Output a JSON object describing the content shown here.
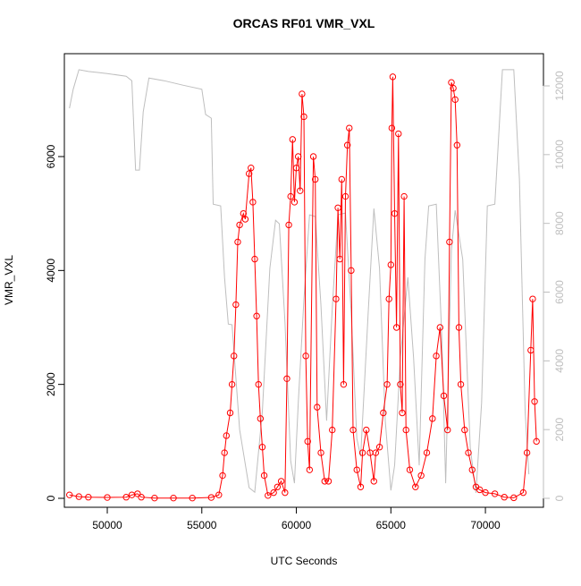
{
  "chart_data": {
    "type": "scatter",
    "title": "ORCAS RF01 VMR_VXL",
    "x_label": "UTC Seconds",
    "y_label": "VMR_VXL",
    "xlim": [
      47730,
      73070
    ],
    "xticks": [
      50000,
      55000,
      60000,
      65000,
      70000
    ],
    "ylim": [
      -157,
      7806
    ],
    "yticks": [
      0,
      2000,
      4000,
      6000
    ],
    "y2lim": [
      -260,
      12937
    ],
    "y2ticks": [
      0,
      2000,
      4000,
      6000,
      8000,
      10000,
      12000
    ],
    "series": [
      {
        "color": "#ff0000",
        "marker": "open-circle",
        "line": true,
        "x": [
          48000,
          48500,
          49000,
          50000,
          51000,
          51300,
          51600,
          51800,
          52500,
          53500,
          54500,
          55500,
          55900,
          56100,
          56200,
          56300,
          56500,
          56600,
          56700,
          56800,
          56900,
          57000,
          57200,
          57300,
          57500,
          57600,
          57700,
          57800,
          57900,
          58000,
          58100,
          58200,
          58300,
          58500,
          58800,
          59000,
          59200,
          59400,
          59500,
          59600,
          59700,
          59800,
          59900,
          60000,
          60100,
          60200,
          60300,
          60400,
          60500,
          60600,
          60700,
          60900,
          61000,
          61100,
          61300,
          61500,
          61700,
          61900,
          62100,
          62200,
          62300,
          62400,
          62500,
          62600,
          62700,
          62800,
          62900,
          63000,
          63200,
          63400,
          63500,
          63700,
          63900,
          64100,
          64200,
          64400,
          64600,
          64800,
          64900,
          65000,
          65050,
          65100,
          65200,
          65300,
          65400,
          65500,
          65600,
          65700,
          65800,
          66000,
          66300,
          66600,
          66900,
          67200,
          67400,
          67600,
          67800,
          68000,
          68100,
          68200,
          68300,
          68400,
          68500,
          68600,
          68700,
          68900,
          69100,
          69300,
          69500,
          69700,
          70000,
          70500,
          71000,
          71500,
          72000,
          72200,
          72400,
          72500,
          72600,
          72700
        ],
        "values": [
          60,
          30,
          20,
          15,
          20,
          60,
          80,
          20,
          5,
          5,
          5,
          15,
          60,
          400,
          800,
          1100,
          1500,
          2000,
          2500,
          3400,
          4500,
          4800,
          5000,
          4900,
          5700,
          5800,
          5200,
          4200,
          3200,
          2000,
          1400,
          900,
          400,
          50,
          100,
          200,
          300,
          100,
          2100,
          4800,
          5300,
          6300,
          5200,
          5800,
          6000,
          5400,
          7100,
          6700,
          2500,
          1000,
          500,
          6000,
          5600,
          1600,
          800,
          300,
          300,
          1200,
          3500,
          5100,
          4200,
          5600,
          2000,
          5300,
          6200,
          6500,
          4000,
          1200,
          500,
          200,
          800,
          1200,
          800,
          300,
          800,
          900,
          1500,
          2000,
          3500,
          4100,
          6500,
          7400,
          5000,
          3000,
          6400,
          2000,
          1500,
          5300,
          1200,
          500,
          200,
          400,
          800,
          1400,
          2500,
          3000,
          1800,
          1200,
          4500,
          7300,
          7200,
          7000,
          6200,
          3000,
          2000,
          1200,
          800,
          500,
          200,
          150,
          100,
          80,
          20,
          10,
          100,
          800,
          2600,
          3500,
          1700,
          1000
        ]
      },
      {
        "color": "#bebebe",
        "axis": "y2",
        "marker": "none",
        "line": true,
        "x": [
          48000,
          48200,
          48500,
          49000,
          49500,
          50000,
          51000,
          51300,
          51500,
          51700,
          51900,
          52200,
          53000,
          54000,
          55000,
          55200,
          55500,
          55600,
          56000,
          56200,
          56400,
          56600,
          57000,
          57500,
          57800,
          58200,
          58600,
          58900,
          59100,
          59400,
          59700,
          59900,
          60100,
          60400,
          60700,
          61000,
          61300,
          61600,
          61900,
          62200,
          62600,
          62900,
          63200,
          63400,
          63800,
          64100,
          64400,
          64700,
          65000,
          65200,
          65500,
          65900,
          66200,
          66500,
          66800,
          67000,
          67400,
          67700,
          67900,
          68200,
          68400,
          68800,
          69200,
          69500,
          69800,
          70100,
          70500,
          70900,
          71500,
          71800,
          72100,
          72300
        ],
        "values": [
          11350,
          11900,
          12470,
          12420,
          12390,
          12360,
          12280,
          12150,
          9550,
          9550,
          11240,
          12230,
          12150,
          12020,
          11900,
          11170,
          11060,
          8560,
          8510,
          6430,
          5070,
          5050,
          2000,
          310,
          180,
          2520,
          6690,
          8090,
          7990,
          5130,
          1090,
          440,
          2780,
          5780,
          8250,
          8200,
          5650,
          2260,
          5520,
          8250,
          8300,
          5390,
          1740,
          1220,
          5390,
          8430,
          6690,
          2260,
          230,
          960,
          4090,
          6430,
          4090,
          960,
          6950,
          8510,
          8560,
          4610,
          440,
          7210,
          8380,
          6950,
          1480,
          160,
          2780,
          8510,
          8560,
          12470,
          12470,
          9290,
          2520,
          700
        ]
      }
    ]
  }
}
